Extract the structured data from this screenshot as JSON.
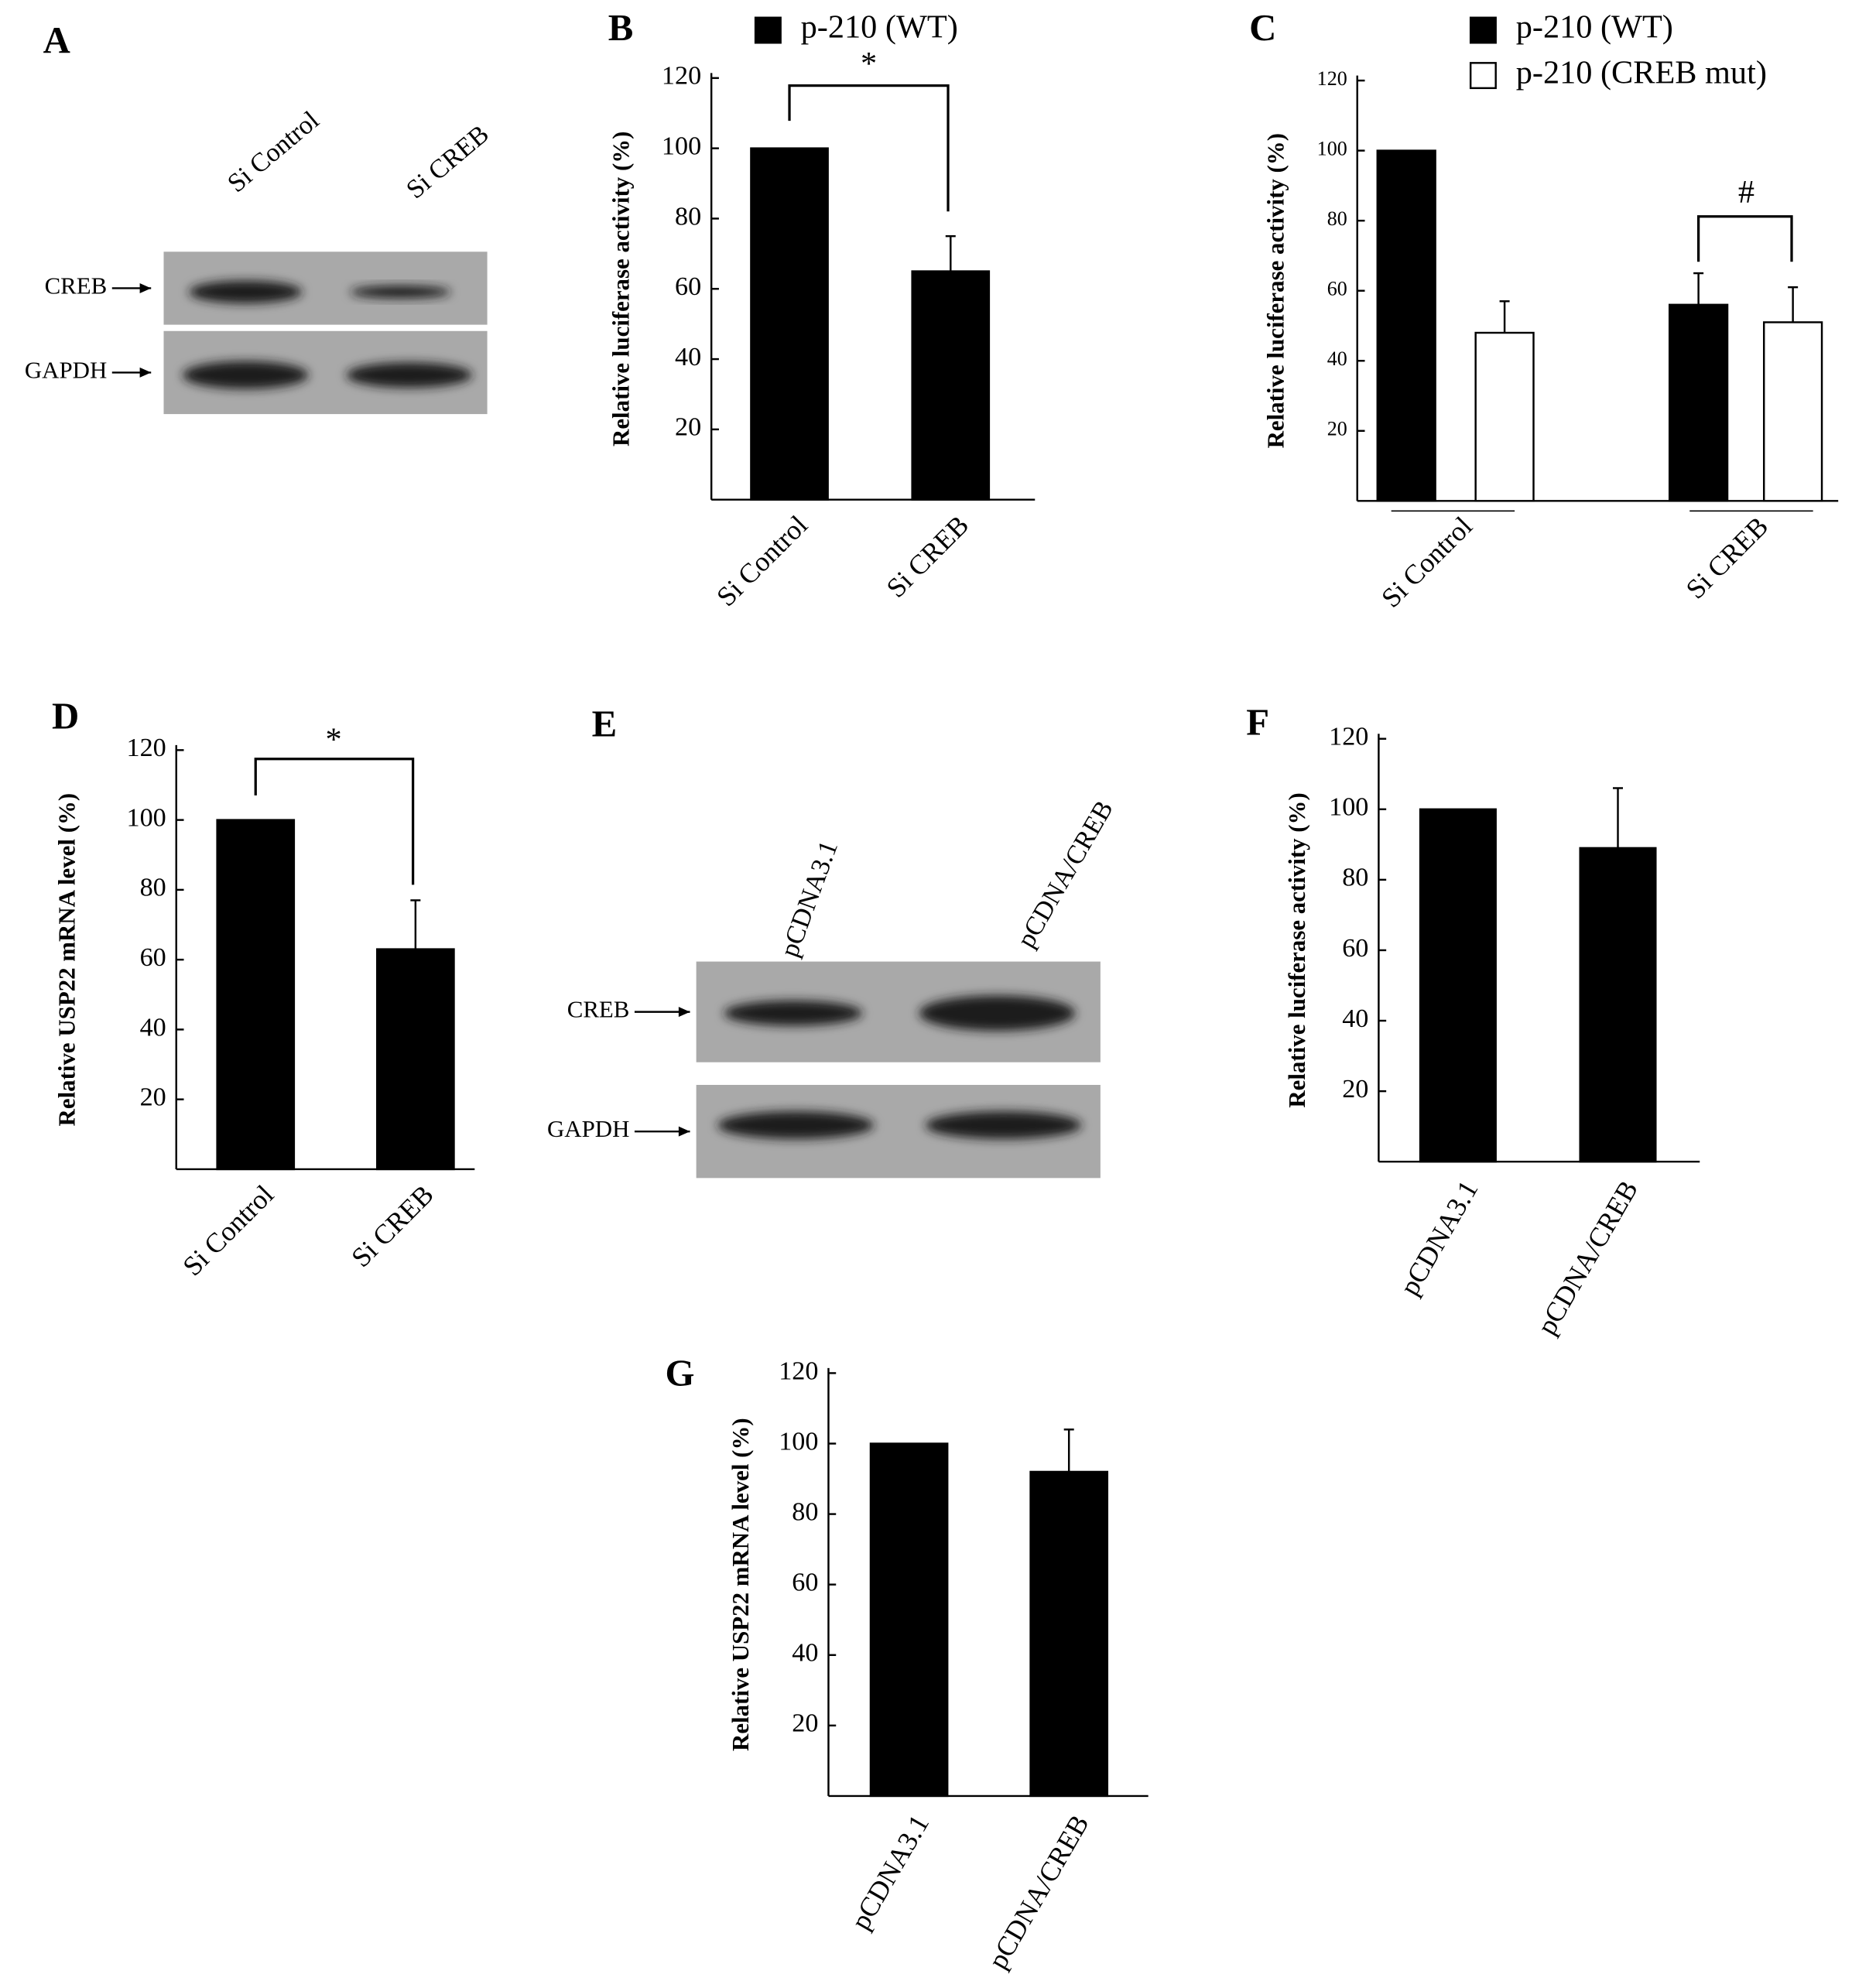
{
  "chart_data": [
    {
      "type": "bar",
      "panel": "B",
      "ylabel": "Relative luciferase activity (%)",
      "categories": [
        "Si Control",
        "Si CREB"
      ],
      "series": [
        {
          "name": "p-210 (WT)",
          "color": "#000000",
          "values": [
            100,
            65
          ],
          "errors": [
            null,
            10
          ]
        }
      ],
      "ylim": [
        0,
        120
      ],
      "yticks": [
        20,
        40,
        60,
        80,
        100,
        120
      ],
      "annotations": [
        "*"
      ]
    },
    {
      "type": "bar",
      "panel": "C",
      "ylabel": "Relative luciferase activity (%)",
      "categories": [
        "Si Control",
        "Si CREB"
      ],
      "series": [
        {
          "name": "p-210 (WT)",
          "color": "#000000",
          "values": [
            100,
            56
          ],
          "errors": [
            null,
            9
          ]
        },
        {
          "name": "p-210 (CREB mut)",
          "color": "#ffffff",
          "values": [
            48,
            51
          ],
          "errors": [
            9,
            10
          ]
        }
      ],
      "ylim": [
        0,
        120
      ],
      "yticks": [
        20,
        40,
        60,
        80,
        100,
        120
      ],
      "annotations": [
        "#"
      ]
    },
    {
      "type": "bar",
      "panel": "D",
      "ylabel": "Relative USP22 mRNA level (%)",
      "categories": [
        "Si Control",
        "Si CREB"
      ],
      "values": [
        100,
        63
      ],
      "errors": [
        null,
        14
      ],
      "color": "#000000",
      "ylim": [
        0,
        120
      ],
      "yticks": [
        20,
        40,
        60,
        80,
        100,
        120
      ],
      "annotations": [
        "*"
      ]
    },
    {
      "type": "bar",
      "panel": "F",
      "ylabel": "Relative luciferase activity (%)",
      "categories": [
        "pCDNA3.1",
        "pCDNA/CREB"
      ],
      "values": [
        100,
        89
      ],
      "errors": [
        null,
        17
      ],
      "color": "#000000",
      "ylim": [
        0,
        120
      ],
      "yticks": [
        20,
        40,
        60,
        80,
        100,
        120
      ]
    },
    {
      "type": "bar",
      "panel": "G",
      "ylabel": "Relative USP22 mRNA level (%)",
      "categories": [
        "pCDNA3.1",
        "pCDNA/CREB"
      ],
      "values": [
        100,
        92
      ],
      "errors": [
        null,
        12
      ],
      "color": "#000000",
      "ylim": [
        0,
        120
      ],
      "yticks": [
        20,
        40,
        60,
        80,
        100,
        120
      ]
    }
  ],
  "blots": [
    {
      "panel": "A",
      "lanes": [
        "Si Control",
        "Si CREB"
      ],
      "rows": [
        "CREB",
        "GAPDH"
      ]
    },
    {
      "panel": "E",
      "lanes": [
        "pCDNA3.1",
        "pCDNA/CREB"
      ],
      "rows": [
        "CREB",
        "GAPDH"
      ]
    }
  ]
}
